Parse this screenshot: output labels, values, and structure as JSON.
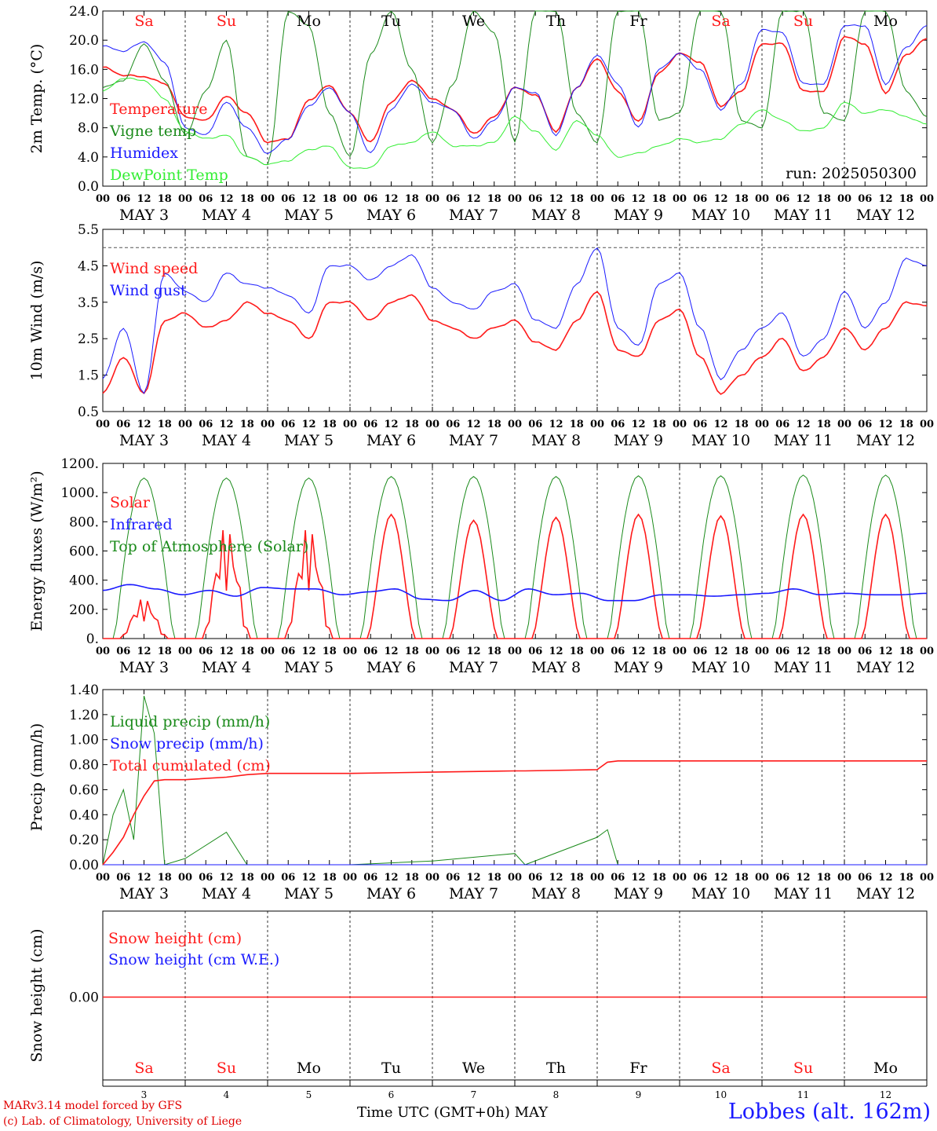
{
  "days": [
    {
      "abbr": "Sa",
      "num": "3",
      "label": "MAY  3",
      "weekend": true
    },
    {
      "abbr": "Su",
      "num": "4",
      "label": "MAY  4",
      "weekend": true
    },
    {
      "abbr": "Mo",
      "num": "5",
      "label": "MAY  5",
      "weekend": false
    },
    {
      "abbr": "Tu",
      "num": "6",
      "label": "MAY  6",
      "weekend": false
    },
    {
      "abbr": "We",
      "num": "7",
      "label": "MAY  7",
      "weekend": false
    },
    {
      "abbr": "Th",
      "num": "8",
      "label": "MAY  8",
      "weekend": false
    },
    {
      "abbr": "Fr",
      "num": "9",
      "label": "MAY  9",
      "weekend": false
    },
    {
      "abbr": "Sa",
      "num": "10",
      "label": "MAY 10",
      "weekend": true
    },
    {
      "abbr": "Su",
      "num": "11",
      "label": "MAY 11",
      "weekend": true
    },
    {
      "abbr": "Mo",
      "num": "12",
      "label": "MAY 12",
      "weekend": false
    }
  ],
  "hour_ticks": [
    "00",
    "06",
    "12",
    "18"
  ],
  "colors": {
    "red": "#ff1a1a",
    "green": "#1a8a1a",
    "blue": "#1a1aff",
    "lightgreen": "#33ee33"
  },
  "footer": {
    "model": "MARv3.14 model forced by GFS",
    "lab": "(c) Lab. of Climatology, University of Liege",
    "axis_title": "Time UTC (GMT+0h)",
    "month": "MAY",
    "site": "Lobbes (alt. 162m)"
  },
  "chart_data": [
    {
      "type": "line",
      "ylabel": "2m Temp. (°C)",
      "ylim": [
        0,
        24
      ],
      "yticks": [
        "0.0",
        "4.0",
        "8.0",
        "12.0",
        "16.0",
        "20.0",
        "24.0"
      ],
      "run": "run: 2025050300",
      "x_hours": [
        0,
        6,
        12,
        18,
        24,
        30,
        36,
        42,
        48,
        54,
        60,
        66,
        72,
        78,
        84,
        90,
        96,
        102,
        108,
        114,
        120,
        126,
        132,
        138,
        144,
        150,
        156,
        162,
        168,
        174,
        180,
        186,
        192,
        198,
        204,
        210,
        216,
        222,
        228,
        234,
        240
      ],
      "series": [
        {
          "name": "Temperature",
          "color": "red",
          "values": [
            16.3,
            15.2,
            15.0,
            14.1,
            9.5,
            9.0,
            12.3,
            10.0,
            6.0,
            6.5,
            11.8,
            13.8,
            10.0,
            6.0,
            11.5,
            14.5,
            12.0,
            10.5,
            7.2,
            9.5,
            13.5,
            12.5,
            7.5,
            13.5,
            17.5,
            13.0,
            8.8,
            15.5,
            18.2,
            17.0,
            11.0,
            13.0,
            19.5,
            19.5,
            13.0,
            13.0,
            20.5,
            19.5,
            12.8,
            18.0,
            20.2
          ]
        },
        {
          "name": "Vigne temp",
          "color": "green",
          "values": [
            13.5,
            14.5,
            19.5,
            14.5,
            7.0,
            13.0,
            20.0,
            4.0,
            3.0,
            24.0,
            22.0,
            10.0,
            4.0,
            18.0,
            24.0,
            16.0,
            6.0,
            14.0,
            24.0,
            21.0,
            6.0,
            24.0,
            24.0,
            10.0,
            6.0,
            24.0,
            24.0,
            9.0,
            10.0,
            24.0,
            24.0,
            9.0,
            8.0,
            24.0,
            24.0,
            10.0,
            9.0,
            24.0,
            24.0,
            13.0,
            9.5
          ]
        },
        {
          "name": "Humidex",
          "color": "blue",
          "values": [
            19.2,
            18.5,
            19.8,
            17.0,
            8.0,
            7.0,
            11.5,
            8.0,
            4.5,
            6.5,
            11.0,
            13.5,
            10.0,
            4.5,
            10.5,
            14.0,
            11.5,
            10.5,
            6.5,
            9.0,
            13.5,
            12.8,
            7.0,
            13.5,
            18.0,
            14.0,
            8.0,
            16.0,
            18.2,
            16.0,
            10.5,
            14.0,
            21.5,
            21.0,
            14.0,
            14.0,
            22.0,
            22.0,
            14.0,
            19.0,
            22.0
          ]
        },
        {
          "name": "DewPoint Temp",
          "color": "lightgreen",
          "values": [
            13.0,
            14.8,
            14.5,
            12.0,
            7.5,
            6.5,
            7.0,
            4.0,
            3.0,
            3.5,
            5.0,
            5.5,
            2.5,
            2.5,
            5.5,
            6.0,
            7.5,
            5.5,
            5.5,
            6.0,
            9.5,
            7.5,
            5.0,
            9.0,
            7.0,
            4.0,
            4.5,
            5.5,
            6.5,
            6.0,
            6.5,
            8.5,
            10.5,
            9.0,
            7.5,
            8.0,
            11.5,
            10.0,
            10.5,
            9.5,
            8.5
          ]
        }
      ]
    },
    {
      "type": "line",
      "ylabel": "10m Wind (m/s)",
      "ylim": [
        0.5,
        5.5
      ],
      "yticks": [
        "0.5",
        "1.5",
        "2.5",
        "3.5",
        "4.5",
        "5.5"
      ],
      "ref_line": 5.0,
      "x_hours": [
        0,
        6,
        12,
        18,
        24,
        30,
        36,
        42,
        48,
        54,
        60,
        66,
        72,
        78,
        84,
        90,
        96,
        102,
        108,
        114,
        120,
        126,
        132,
        138,
        144,
        150,
        156,
        162,
        168,
        174,
        180,
        186,
        192,
        198,
        204,
        210,
        216,
        222,
        228,
        234,
        240
      ],
      "series": [
        {
          "name": "Wind speed",
          "color": "red",
          "values": [
            1.0,
            2.0,
            1.0,
            3.0,
            3.2,
            2.8,
            3.0,
            3.5,
            3.2,
            3.0,
            2.5,
            3.5,
            3.5,
            3.0,
            3.5,
            3.7,
            3.0,
            2.8,
            2.5,
            2.8,
            3.0,
            2.4,
            2.2,
            3.0,
            3.8,
            2.2,
            2.0,
            3.0,
            3.3,
            2.0,
            1.0,
            1.5,
            2.0,
            2.5,
            1.6,
            2.0,
            2.8,
            2.2,
            2.8,
            3.5,
            3.4
          ]
        },
        {
          "name": "Wind gust",
          "color": "blue",
          "values": [
            1.4,
            2.8,
            1.0,
            4.3,
            3.8,
            3.5,
            4.3,
            4.0,
            3.9,
            3.7,
            3.2,
            4.5,
            4.5,
            4.1,
            4.5,
            4.8,
            3.9,
            3.5,
            3.3,
            3.8,
            4.0,
            3.0,
            2.8,
            4.0,
            5.0,
            2.8,
            2.3,
            4.0,
            4.3,
            2.8,
            1.4,
            2.2,
            2.8,
            3.2,
            2.0,
            2.5,
            3.8,
            2.8,
            3.5,
            4.7,
            4.5
          ]
        }
      ]
    },
    {
      "type": "line",
      "ylabel": "Energy fluxes (W/m²)",
      "ylim": [
        0,
        1200
      ],
      "yticks": [
        "0.",
        "200.",
        "400.",
        "600.",
        "800.",
        "1000.",
        "1200."
      ],
      "series": [
        {
          "name": "Solar",
          "color": "red",
          "daily_peaks": [
            280,
            780,
            780,
            850,
            810,
            830,
            850,
            840,
            850,
            850
          ]
        },
        {
          "name": "Infrared",
          "color": "blue",
          "values": [
            330,
            370,
            340,
            300,
            330,
            290,
            350,
            340,
            340,
            300,
            320,
            340,
            270,
            260,
            330,
            260,
            340,
            300,
            310,
            260,
            260,
            300,
            300,
            290,
            300,
            310,
            340,
            300,
            310,
            300,
            300,
            310
          ]
        },
        {
          "name": "Top of Atmosphere (Solar)",
          "color": "green",
          "daily_peaks": [
            1100,
            1100,
            1100,
            1110,
            1110,
            1110,
            1115,
            1115,
            1120,
            1120
          ]
        }
      ]
    },
    {
      "type": "line",
      "ylabel": "Precip (mm/h)",
      "ylim": [
        0,
        1.4
      ],
      "yticks": [
        "0.00",
        "0.20",
        "0.40",
        "0.60",
        "0.80",
        "1.00",
        "1.20",
        "1.40"
      ],
      "x_hours": [
        0,
        3,
        6,
        9,
        12,
        15,
        18,
        24,
        36,
        42,
        48,
        72,
        96,
        120,
        123,
        144,
        147,
        150,
        240
      ],
      "series": [
        {
          "name": "Liquid precip (mm/h)",
          "color": "green",
          "values": [
            0,
            0.4,
            0.6,
            0.2,
            1.35,
            1.05,
            0,
            0.05,
            0.26,
            0,
            0,
            0,
            0.03,
            0.09,
            0,
            0.22,
            0.28,
            0,
            0
          ]
        },
        {
          "name": "Snow precip (mm/h)",
          "color": "blue",
          "values": [
            0,
            0,
            0,
            0,
            0,
            0,
            0,
            0,
            0,
            0,
            0,
            0,
            0,
            0,
            0,
            0,
            0,
            0,
            0
          ]
        },
        {
          "name": "Total cumulated (cm)",
          "color": "red",
          "values": [
            0,
            0.1,
            0.22,
            0.4,
            0.55,
            0.67,
            0.68,
            0.68,
            0.7,
            0.72,
            0.73,
            0.73,
            0.74,
            0.75,
            0.75,
            0.76,
            0.82,
            0.83,
            0.83
          ]
        }
      ]
    },
    {
      "type": "line",
      "ylabel": "Snow height (cm)",
      "yticks": [
        "0.00"
      ],
      "series": [
        {
          "name": "Snow height (cm)",
          "color": "red",
          "values": [
            0,
            0
          ]
        },
        {
          "name": "Snow height (cm W.E.)",
          "color": "blue",
          "values": [
            0,
            0
          ]
        }
      ]
    }
  ]
}
